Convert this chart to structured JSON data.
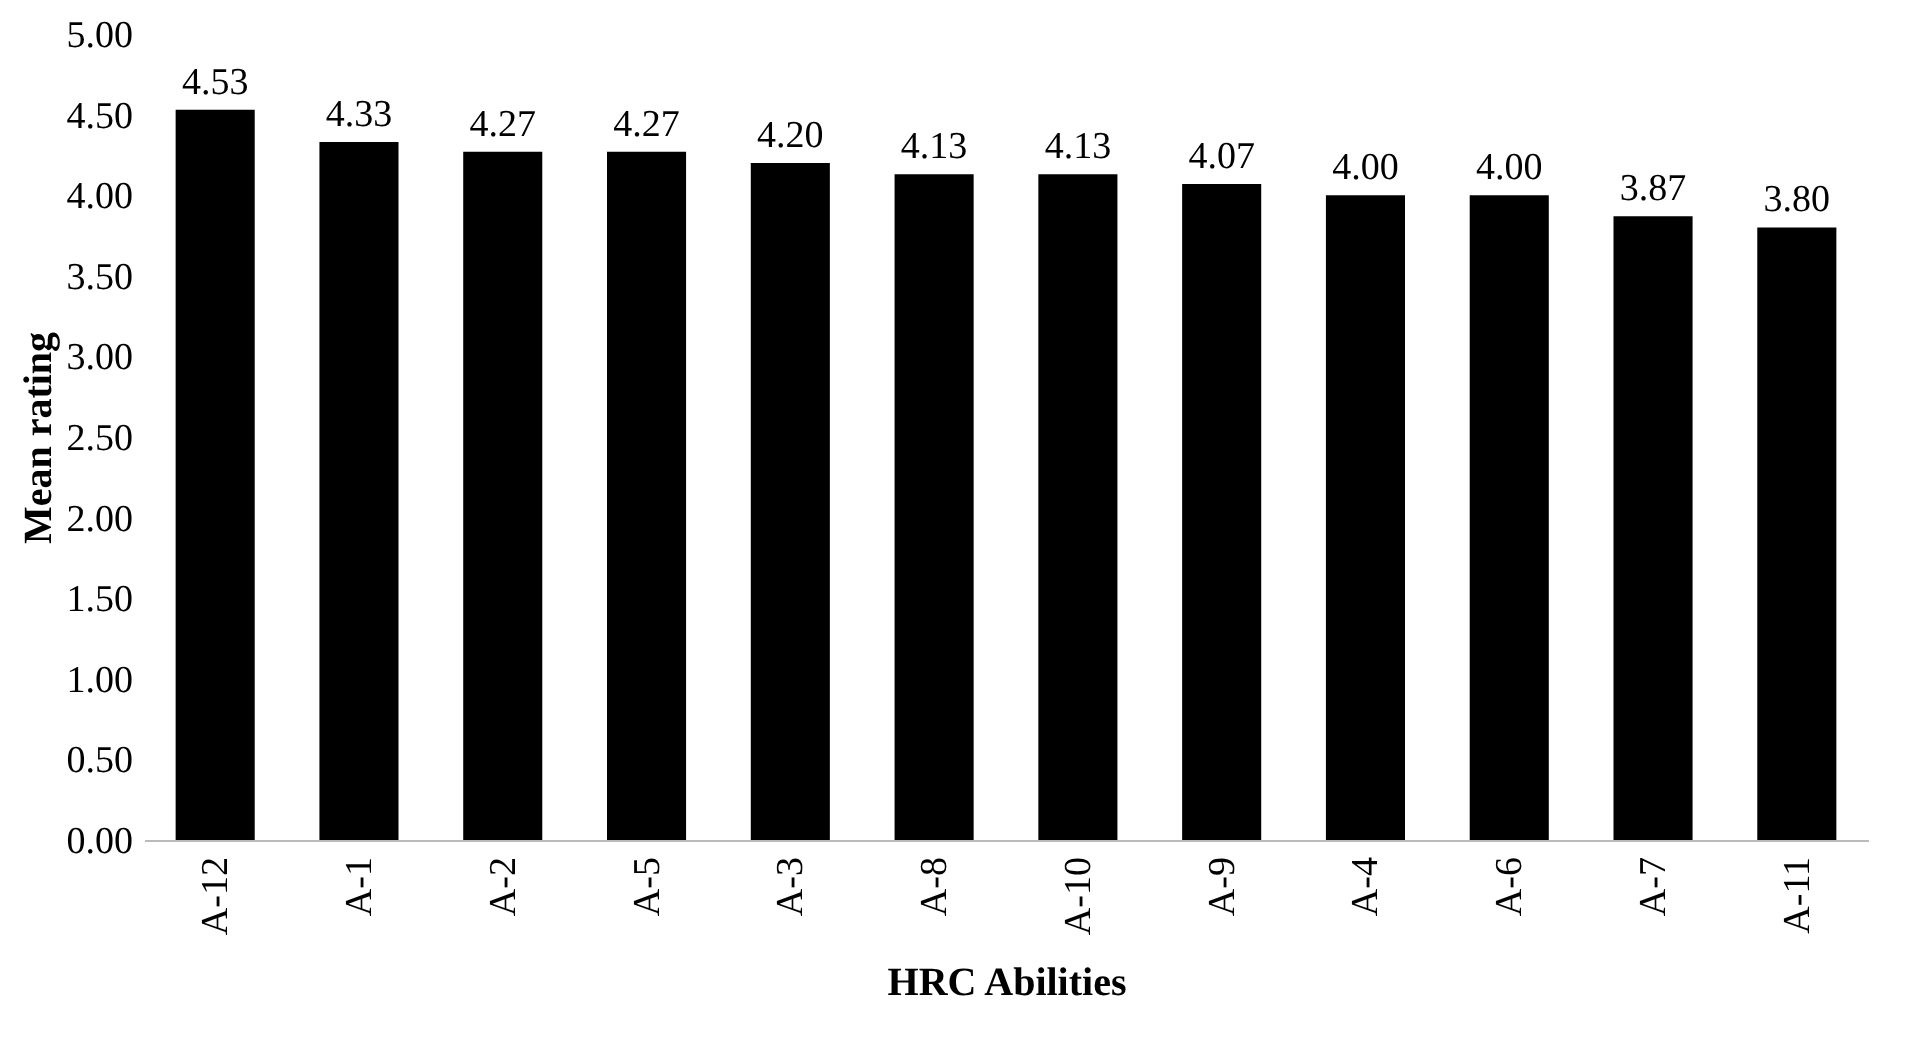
{
  "chart_data": {
    "type": "bar",
    "xlabel": "HRC Abilities",
    "ylabel": "Mean rating",
    "categories": [
      "A-12",
      "A-1",
      "A-2",
      "A-5",
      "A-3",
      "A-8",
      "A-10",
      "A-9",
      "A-4",
      "A-6",
      "A-7",
      "A-11"
    ],
    "values": [
      4.53,
      4.33,
      4.27,
      4.27,
      4.2,
      4.13,
      4.13,
      4.07,
      4.0,
      4.0,
      3.87,
      3.8
    ],
    "value_labels": [
      "4.53",
      "4.33",
      "4.27",
      "4.27",
      "4.20",
      "4.13",
      "4.13",
      "4.07",
      "4.00",
      "4.00",
      "3.87",
      "3.80"
    ],
    "color": "#000000",
    "ylim": [
      0,
      5
    ],
    "yticks": [
      {
        "value": 0,
        "label": "0.00"
      },
      {
        "value": 0.5,
        "label": "0.50"
      },
      {
        "value": 1,
        "label": "1.00"
      },
      {
        "value": 1.5,
        "label": "1.50"
      },
      {
        "value": 2,
        "label": "2.00"
      },
      {
        "value": 2.5,
        "label": "2.50"
      },
      {
        "value": 3,
        "label": "3.00"
      },
      {
        "value": 3.5,
        "label": "3.50"
      },
      {
        "value": 4,
        "label": "4.00"
      },
      {
        "value": 4.5,
        "label": "4.50"
      },
      {
        "value": 5,
        "label": "5.00"
      }
    ],
    "grid": false
  }
}
